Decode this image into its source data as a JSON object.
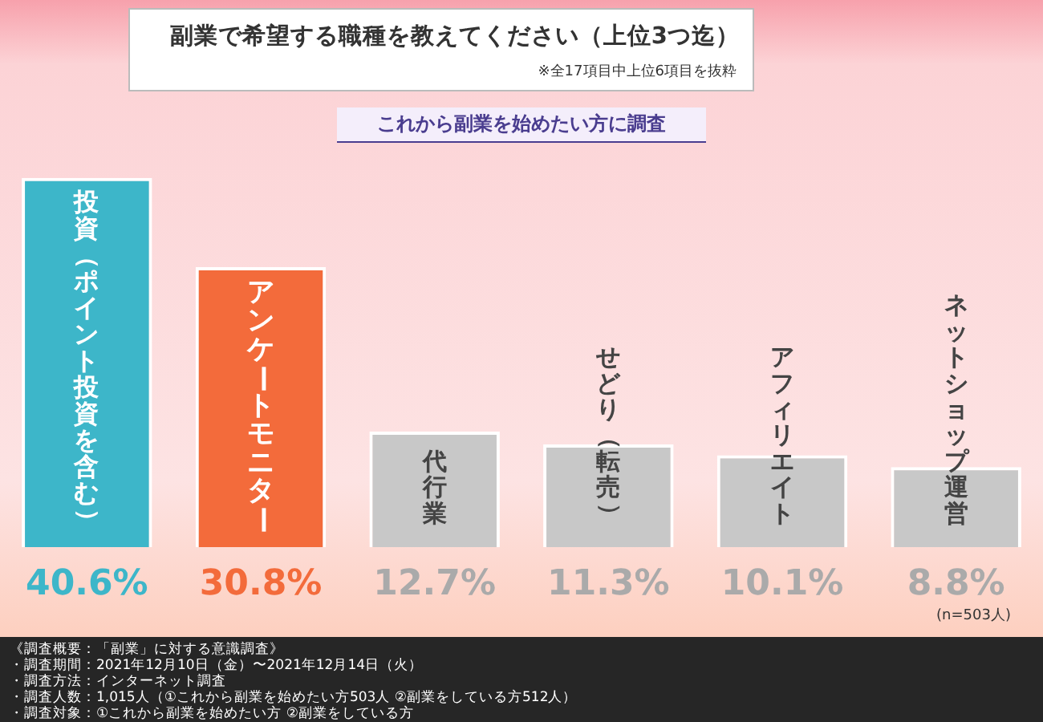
{
  "chart_data": {
    "type": "bar",
    "title": "副業で希望する職種を教えてください（上位3つ迄）",
    "subtitle": "※全17項目中上位6項目を抜粋",
    "categories": [
      "投資（ポイント投資を含む）",
      "アンケートモニター",
      "代行業",
      "せどり（転売）",
      "アフィリエイト",
      "ネットショップ運営"
    ],
    "values": [
      40.6,
      30.8,
      12.7,
      11.3,
      10.1,
      8.8
    ],
    "colors": [
      "#3db6c9",
      "#f36b3b",
      "#c8c8c8",
      "#c8c8c8",
      "#c8c8c8",
      "#c8c8c8"
    ],
    "value_labels": [
      "40.6%",
      "30.8%",
      "12.7%",
      "11.3%",
      "10.1%",
      "8.8%"
    ],
    "tick_labels": false,
    "legend": false,
    "annotations": [
      "これから副業を始めたい方に調査",
      "(n=503人)",
      "《調査概要：「副業」に対する意識調査》",
      "・調査期間：2021年12月10日（金）〜2021年12月14日（火）",
      "・調査方法：インターネット調査",
      "・調査人数：1,015人（①これから副業を始めたい方503人 ②副業をしている方512人）",
      "・調査対象：①これから副業を始めたい方 ②副業をしている方"
    ]
  }
}
